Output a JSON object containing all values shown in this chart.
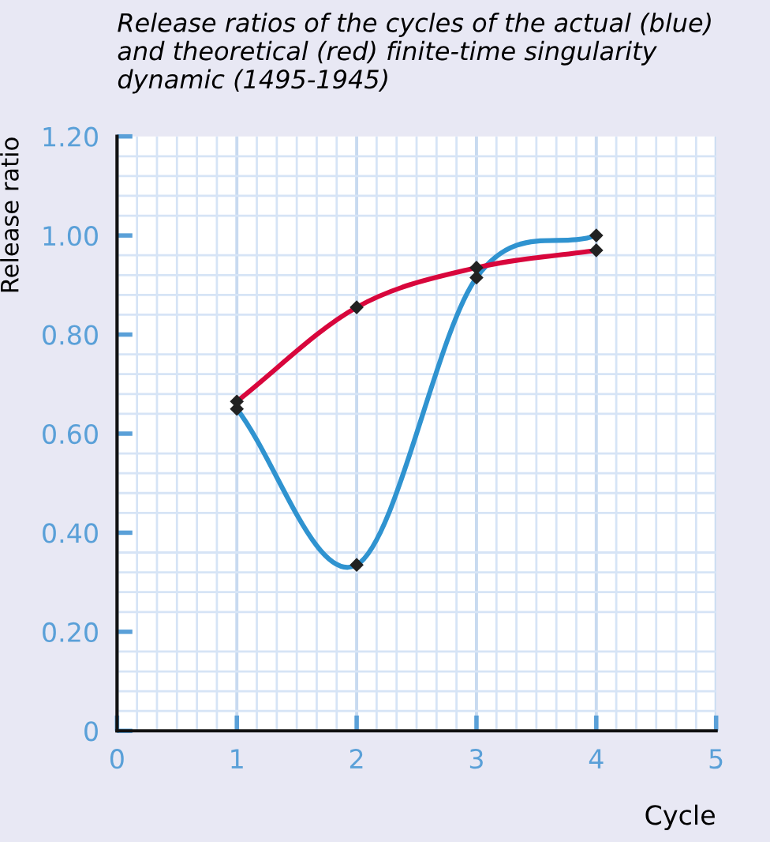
{
  "chart_data": {
    "type": "line",
    "title": "Release ratios of the cycles of the actual (blue) and theoretical (red) finite-time singularity dynamic (1495-1945)",
    "xlabel": "Cycle",
    "ylabel": "Release ratio",
    "x": [
      1,
      2,
      3,
      4
    ],
    "series": [
      {
        "color": "#2f93d0",
        "values": [
          0.65,
          0.335,
          0.915,
          1.0
        ]
      },
      {
        "color": "#d8063c",
        "values": [
          0.665,
          0.855,
          0.935,
          0.97
        ]
      }
    ],
    "xlim": [
      0,
      5
    ],
    "xticks": [
      0,
      1,
      2,
      3,
      4,
      5
    ],
    "ylim": [
      0,
      1.2
    ],
    "yticks": [
      0,
      {
        "value": 0.2,
        "label": "0.20"
      },
      {
        "value": 0.4,
        "label": "0.40"
      },
      {
        "value": 0.6,
        "label": "0.60"
      },
      {
        "value": 0.8,
        "label": "0.80"
      },
      {
        "value": 1.0,
        "label": "1.00"
      },
      {
        "value": 1.2,
        "label": "1.20"
      }
    ],
    "grid": true,
    "marker": "diamond",
    "line_style": "solid"
  }
}
